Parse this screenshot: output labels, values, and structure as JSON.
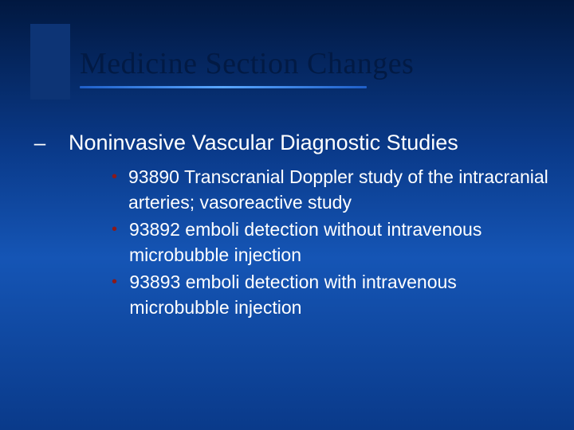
{
  "colors": {
    "bg_top": "#011840",
    "bg_mid": "#1555b5",
    "accent_block": "#0d3475",
    "title_text": "#021a44",
    "body_text": "#ffffff",
    "bullet_color": "#8b1a1a",
    "underline_gradient": [
      "#1f5fc9",
      "#5aa7ff",
      "#1f5fc9"
    ]
  },
  "typography": {
    "title_family": "Times New Roman",
    "title_size_pt": 38,
    "body_family": "Arial",
    "lvl1_size_pt": 27,
    "lvl2_size_pt": 23
  },
  "title": "Medicine Section Changes",
  "lvl1": {
    "dash": "–",
    "text": "Noninvasive Vascular Diagnostic Studies"
  },
  "bullets": [
    {
      "text": "93890  Transcranial Doppler study of the intracranial arteries; vasoreactive study"
    },
    {
      "text": "93892           emboli detection without intravenous microbubble injection"
    },
    {
      "text": "93893           emboli detection with intravenous microbubble injection"
    }
  ]
}
